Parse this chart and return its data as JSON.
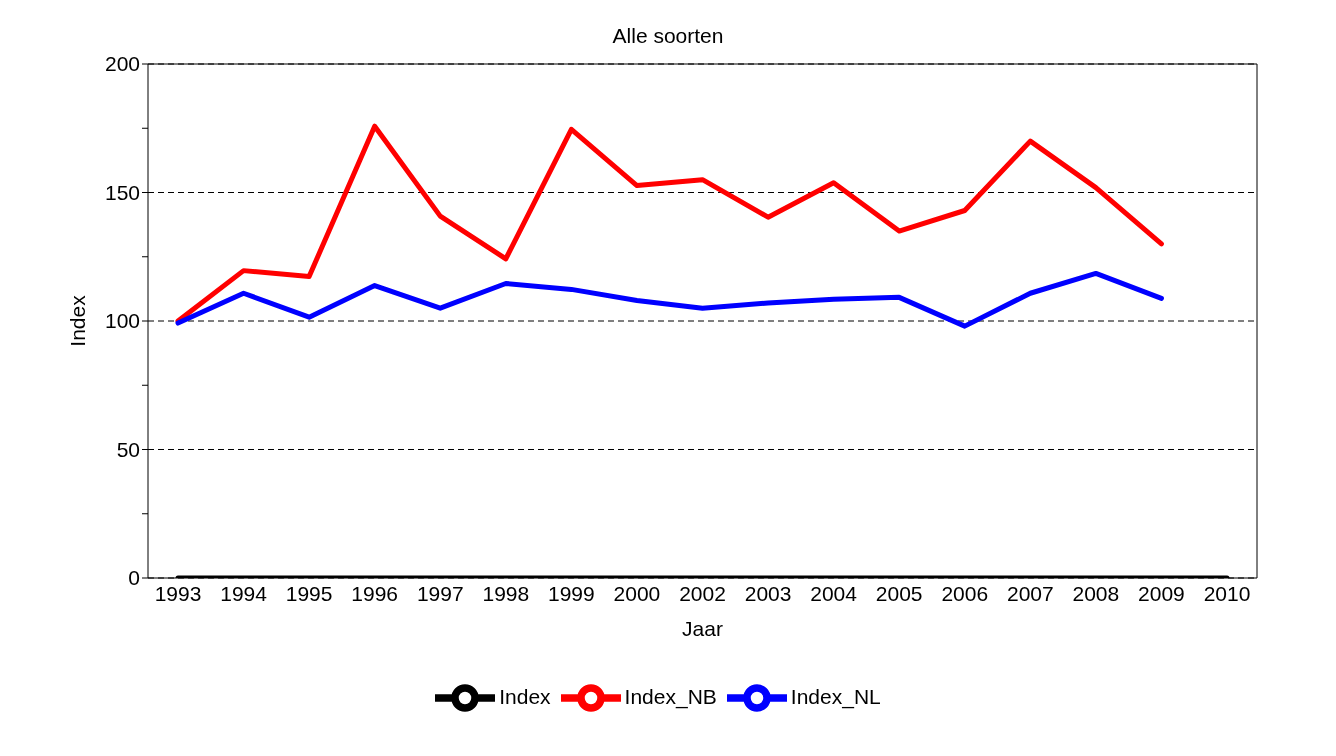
{
  "chart_data": {
    "type": "line",
    "title": "Alle soorten",
    "xlabel": "Jaar",
    "ylabel": "Index",
    "categories": [
      "1993",
      "1994",
      "1995",
      "1996",
      "1997",
      "1998",
      "1999",
      "2000",
      "2002",
      "2003",
      "2004",
      "2005",
      "2006",
      "2007",
      "2008",
      "2009",
      "2010"
    ],
    "series": [
      {
        "name": "Index",
        "color": "#000000",
        "values": [
          0,
          0,
          0,
          0,
          0,
          0,
          0,
          0,
          0,
          0,
          0,
          0,
          0,
          0,
          0,
          0,
          0
        ]
      },
      {
        "name": "Index_NB",
        "color": "#ff0000",
        "values": [
          100,
          119.6,
          117.3,
          175.8,
          140.8,
          124.2,
          174.6,
          152.7,
          155,
          140.4,
          153.8,
          135,
          143,
          170,
          151.9,
          130,
          null
        ]
      },
      {
        "name": "Index_NL",
        "color": "#0000ff",
        "values": [
          99.2,
          110.8,
          101.5,
          113.8,
          105,
          114.6,
          112.3,
          108,
          105,
          107,
          108.5,
          109.2,
          98,
          110.8,
          118.5,
          108.8,
          null
        ]
      }
    ],
    "ylim": [
      0,
      200
    ],
    "yticks": [
      0,
      {
        "value": 25,
        "label": null
      },
      50,
      {
        "value": 75,
        "label": null
      },
      100,
      {
        "value": 125,
        "label": null
      },
      150,
      {
        "value": 175,
        "label": null
      },
      200
    ],
    "grid": "y",
    "legend": "bottom",
    "marker": "none",
    "line_style": "solid"
  }
}
